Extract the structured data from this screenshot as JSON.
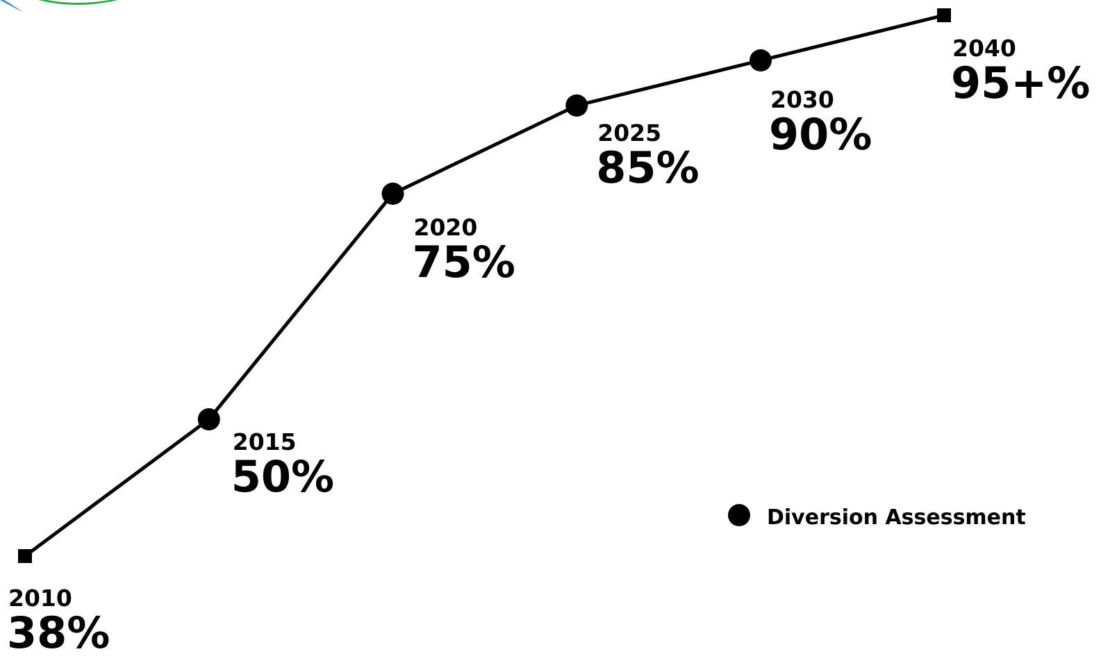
{
  "chart_data": {
    "type": "line",
    "series": [
      {
        "name": "Diversion Assessment",
        "points": [
          {
            "x": 2010,
            "y": 38,
            "year_label": "2010",
            "value_label": "38%",
            "marker": "square"
          },
          {
            "x": 2015,
            "y": 50,
            "year_label": "2015",
            "value_label": "50%",
            "marker": "circle"
          },
          {
            "x": 2020,
            "y": 75,
            "year_label": "2020",
            "value_label": "75%",
            "marker": "circle"
          },
          {
            "x": 2025,
            "y": 85,
            "year_label": "2025",
            "value_label": "85%",
            "marker": "circle"
          },
          {
            "x": 2030,
            "y": 90,
            "year_label": "2030",
            "value_label": "90%",
            "marker": "circle"
          },
          {
            "x": 2040,
            "y": 95,
            "year_label": "2040",
            "value_label": "95+%",
            "marker": "square"
          }
        ]
      }
    ],
    "legend": {
      "position": "right",
      "entries": [
        {
          "label": "Diversion Assessment",
          "marker": "circle"
        }
      ]
    },
    "title": "",
    "xlabel": "",
    "ylabel": "",
    "grid": false,
    "axes_visible": false,
    "colors": {
      "line": "#000000",
      "marker": "#000000",
      "text": "#000000",
      "logo_green": "#2eaa4a",
      "logo_blue": "#3b8fc4"
    }
  }
}
